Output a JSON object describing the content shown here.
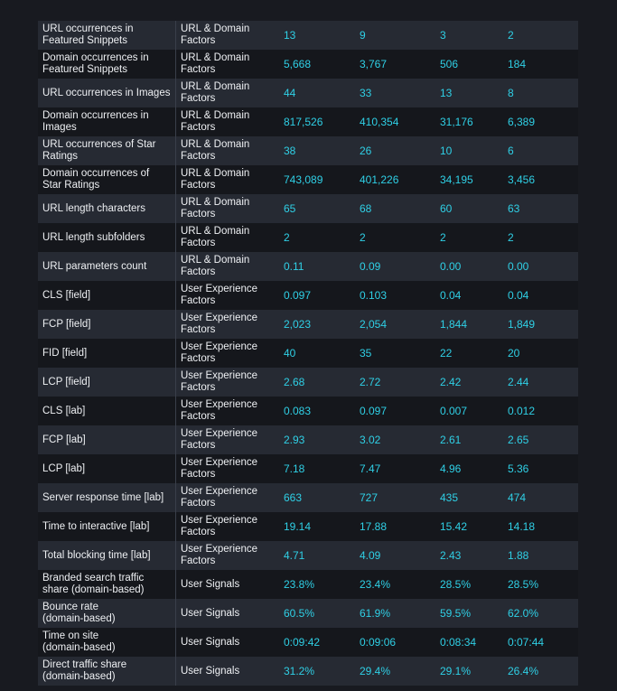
{
  "rows": [
    {
      "name": "URL occurrences in Featured Snippets",
      "group": "URL & Domain Factors",
      "values": [
        "13",
        "9",
        "3",
        "2"
      ]
    },
    {
      "name": "Domain occurrences in Featured Snippets",
      "group": "URL & Domain Factors",
      "values": [
        "5,668",
        "3,767",
        "506",
        "184"
      ]
    },
    {
      "name": "URL occurrences in Images",
      "group": "URL & Domain Factors",
      "values": [
        "44",
        "33",
        "13",
        "8"
      ]
    },
    {
      "name": "Domain occurrences in Images",
      "group": "URL & Domain Factors",
      "values": [
        "817,526",
        "410,354",
        "31,176",
        "6,389"
      ]
    },
    {
      "name": "URL occurrences of Star Ratings",
      "group": "URL & Domain Factors",
      "values": [
        "38",
        "26",
        "10",
        "6"
      ]
    },
    {
      "name": "Domain occurrences of Star Ratings",
      "group": "URL & Domain Factors",
      "values": [
        "743,089",
        "401,226",
        "34,195",
        "3,456"
      ]
    },
    {
      "name": "URL length characters",
      "group": "URL & Domain Factors",
      "values": [
        "65",
        "68",
        "60",
        "63"
      ]
    },
    {
      "name": "URL length subfolders",
      "group": "URL & Domain Factors",
      "values": [
        "2",
        "2",
        "2",
        "2"
      ]
    },
    {
      "name": "URL parameters count",
      "group": "URL & Domain Factors",
      "values": [
        "0.11",
        "0.09",
        "0.00",
        "0.00"
      ]
    },
    {
      "name": "CLS [field]",
      "group": "User Experience Factors",
      "values": [
        "0.097",
        "0.103",
        "0.04",
        "0.04"
      ]
    },
    {
      "name": "FCP [field]",
      "group": "User Experience Factors",
      "values": [
        "2,023",
        "2,054",
        "1,844",
        "1,849"
      ]
    },
    {
      "name": "FID [field]",
      "group": "User Experience Factors",
      "values": [
        "40",
        "35",
        "22",
        "20"
      ]
    },
    {
      "name": "LCP [field]",
      "group": "User Experience Factors",
      "values": [
        "2.68",
        "2.72",
        "2.42",
        "2.44"
      ]
    },
    {
      "name": "CLS [lab]",
      "group": "User Experience Factors",
      "values": [
        "0.083",
        "0.097",
        "0.007",
        "0.012"
      ]
    },
    {
      "name": "FCP [lab]",
      "group": "User Experience Factors",
      "values": [
        "2.93",
        "3.02",
        "2.61",
        "2.65"
      ]
    },
    {
      "name": "LCP [lab]",
      "group": "User Experience Factors",
      "values": [
        "7.18",
        "7.47",
        "4.96",
        "5.36"
      ]
    },
    {
      "name": "Server response time [lab]",
      "group": "User Experience Factors",
      "values": [
        "663",
        "727",
        "435",
        "474"
      ]
    },
    {
      "name": "Time to interactive [lab]",
      "group": "User Experience Factors",
      "values": [
        "19.14",
        "17.88",
        "15.42",
        "14.18"
      ]
    },
    {
      "name": "Total blocking time [lab]",
      "group": "User Experience Factors",
      "values": [
        "4.71",
        "4.09",
        "2.43",
        "1.88"
      ]
    },
    {
      "name": "Branded search traffic share (domain-based)",
      "group": "User Signals",
      "values": [
        "23.8%",
        "23.4%",
        "28.5%",
        "28.5%"
      ]
    },
    {
      "name": "Bounce rate (domain-based)",
      "group": "User Signals",
      "values": [
        "60.5%",
        "61.9%",
        "59.5%",
        "62.0%"
      ]
    },
    {
      "name": "Time on site (domain-based)",
      "group": "User Signals",
      "values": [
        "0:09:42",
        "0:09:06",
        "0:08:34",
        "0:07:44"
      ]
    },
    {
      "name": "Direct traffic share (domain-based)",
      "group": "User Signals",
      "values": [
        "31.2%",
        "29.4%",
        "29.1%",
        "26.4%"
      ]
    }
  ]
}
